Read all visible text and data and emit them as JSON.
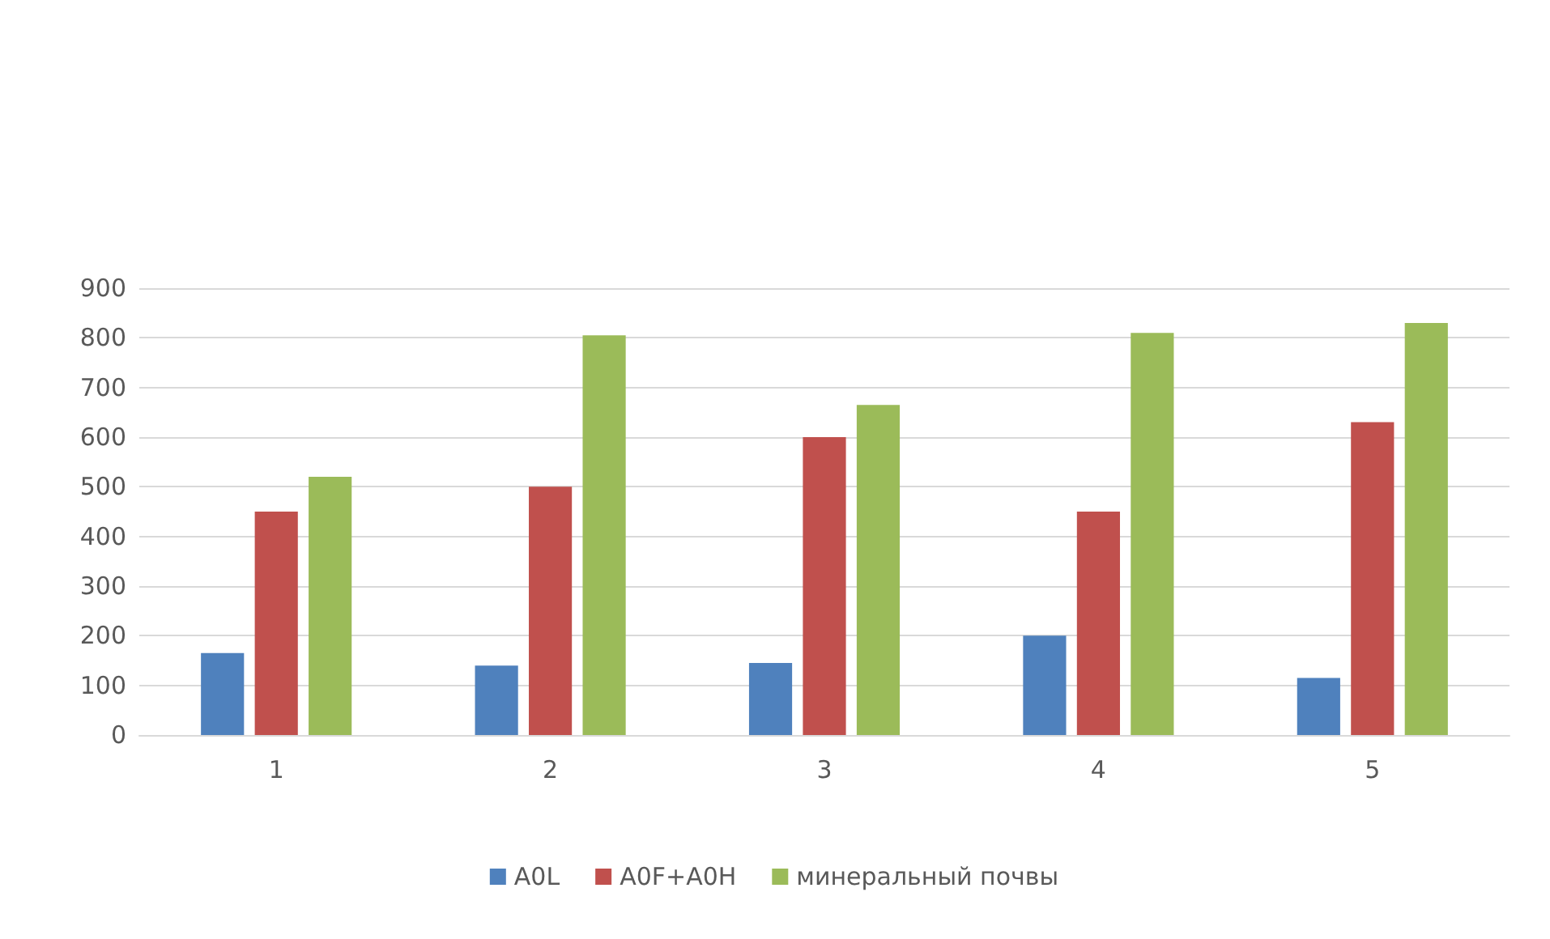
{
  "chart_data": {
    "type": "bar",
    "categories": [
      "1",
      "2",
      "3",
      "4",
      "5"
    ],
    "series": [
      {
        "name": "A0L",
        "color": "#4f81bd",
        "values": [
          165,
          140,
          145,
          200,
          115
        ]
      },
      {
        "name": "A0F+A0H",
        "color": "#c0504d",
        "values": [
          450,
          500,
          600,
          450,
          630
        ]
      },
      {
        "name": "минеральный почвы",
        "color": "#9bbb59",
        "values": [
          520,
          805,
          665,
          810,
          830
        ]
      }
    ],
    "ylim": [
      0,
      900
    ],
    "yticks": [
      0,
      100,
      200,
      300,
      400,
      500,
      600,
      700,
      800,
      900
    ],
    "grid": "y",
    "legend": "bottom"
  }
}
